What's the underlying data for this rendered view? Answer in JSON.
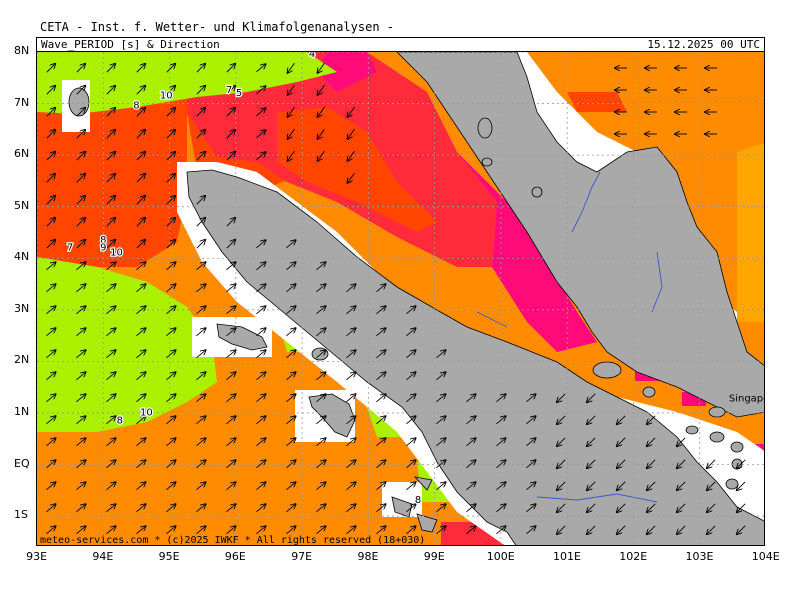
{
  "header": {
    "provider_line": "CETA - Inst. f. Wetter- und Klimafolgenanalysen -",
    "title": "Wave_PERIOD [s] & Direction",
    "timestamp": "15.12.2025 00 UTC"
  },
  "footer": {
    "credit": "meteo-services.com * (c)2025 IWKF * All rights reserved (18+030)"
  },
  "axes": {
    "lon_labels": [
      "93E",
      "94E",
      "95E",
      "96E",
      "97E",
      "98E",
      "99E",
      "100E",
      "101E",
      "102E",
      "103E",
      "104E"
    ],
    "lat_labels": [
      "8N",
      "7N",
      "6N",
      "5N",
      "4N",
      "3N",
      "2N",
      "1N",
      "EQ",
      "1S"
    ],
    "lon_range": [
      93,
      104
    ],
    "lat_range": [
      -1.6,
      8
    ]
  },
  "places": [
    {
      "name": "Singapore",
      "lon": 103.85,
      "lat": 1.3
    }
  ],
  "contour_labels": [
    {
      "text": "4",
      "lon": 97.15,
      "lat": 7.9
    },
    {
      "text": "7",
      "lon": 95.9,
      "lat": 7.2
    },
    {
      "text": "5",
      "lon": 96.05,
      "lat": 7.15
    },
    {
      "text": "10",
      "lon": 94.95,
      "lat": 7.1
    },
    {
      "text": "8",
      "lon": 94.5,
      "lat": 6.9
    },
    {
      "text": "8",
      "lon": 94.0,
      "lat": 4.3
    },
    {
      "text": "9",
      "lon": 94.0,
      "lat": 4.15
    },
    {
      "text": "7",
      "lon": 93.5,
      "lat": 4.15
    },
    {
      "text": "10",
      "lon": 94.2,
      "lat": 4.05
    },
    {
      "text": "10",
      "lon": 94.65,
      "lat": 0.95
    },
    {
      "text": "8",
      "lon": 94.25,
      "lat": 0.8
    },
    {
      "text": "8",
      "lon": 98.75,
      "lat": -0.75
    }
  ],
  "legend_colors": {
    "period_low": "#aaf000",
    "period_green": "#c8ee30",
    "period_orange": "#ff8c00",
    "period_orange_red": "#ff4500",
    "period_red": "#ff2a3a",
    "period_magenta": "#ff0a78",
    "period_yellow_orange": "#ffa500",
    "land": "#a9a9a9",
    "river": "#3a56d4"
  }
}
